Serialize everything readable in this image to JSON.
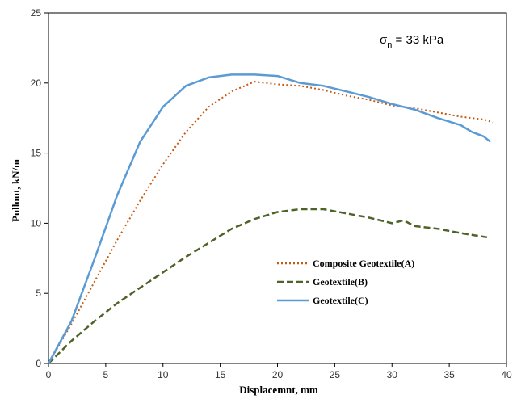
{
  "chart_data": {
    "type": "line",
    "xlabel": "Displacemnt, mm",
    "ylabel": "Pullout, kN/m",
    "xlim": [
      0,
      40
    ],
    "ylim": [
      0,
      25
    ],
    "x_ticks": [
      0,
      5,
      10,
      15,
      20,
      25,
      30,
      35,
      40
    ],
    "y_ticks": [
      0,
      5,
      10,
      15,
      20,
      25
    ],
    "grid": false,
    "legend_position": "bottom-right",
    "annotation": {
      "symbol": "σ",
      "subscript": "n",
      "text": " = 33 kPa"
    },
    "series": [
      {
        "name": "Composite Geotextile(A)",
        "color": "#c55a11",
        "style": "dotted",
        "x": [
          0,
          2,
          4,
          6,
          8,
          10,
          12,
          14,
          16,
          18,
          20,
          22,
          24,
          26,
          28,
          30,
          32,
          34,
          36,
          38,
          38.8
        ],
        "y": [
          0,
          2.8,
          5.8,
          8.8,
          11.6,
          14.2,
          16.5,
          18.3,
          19.4,
          20.1,
          19.9,
          19.8,
          19.5,
          19.1,
          18.8,
          18.4,
          18.2,
          17.9,
          17.6,
          17.4,
          17.2
        ]
      },
      {
        "name": "Geotextile(B)",
        "color": "#4f6228",
        "style": "dashed",
        "x": [
          0,
          2,
          4,
          6,
          8,
          10,
          12,
          14,
          16,
          18,
          20,
          22,
          24,
          26,
          28,
          30,
          31,
          32,
          34,
          36,
          38.3
        ],
        "y": [
          0,
          1.6,
          3.0,
          4.3,
          5.4,
          6.5,
          7.6,
          8.6,
          9.6,
          10.3,
          10.8,
          11.0,
          11.0,
          10.7,
          10.4,
          10.0,
          10.2,
          9.8,
          9.6,
          9.3,
          9.0
        ]
      },
      {
        "name": "Geotextile(C)",
        "color": "#5b9bd5",
        "style": "solid",
        "x": [
          0,
          2,
          4,
          6,
          8,
          10,
          12,
          14,
          16,
          18,
          20,
          22,
          24,
          26,
          28,
          30,
          32,
          34,
          36,
          37,
          38,
          38.6
        ],
        "y": [
          0,
          3.0,
          7.4,
          12.0,
          15.8,
          18.3,
          19.8,
          20.4,
          20.6,
          20.6,
          20.5,
          20.0,
          19.8,
          19.4,
          19.0,
          18.5,
          18.1,
          17.5,
          17.0,
          16.5,
          16.2,
          15.8
        ]
      }
    ]
  }
}
